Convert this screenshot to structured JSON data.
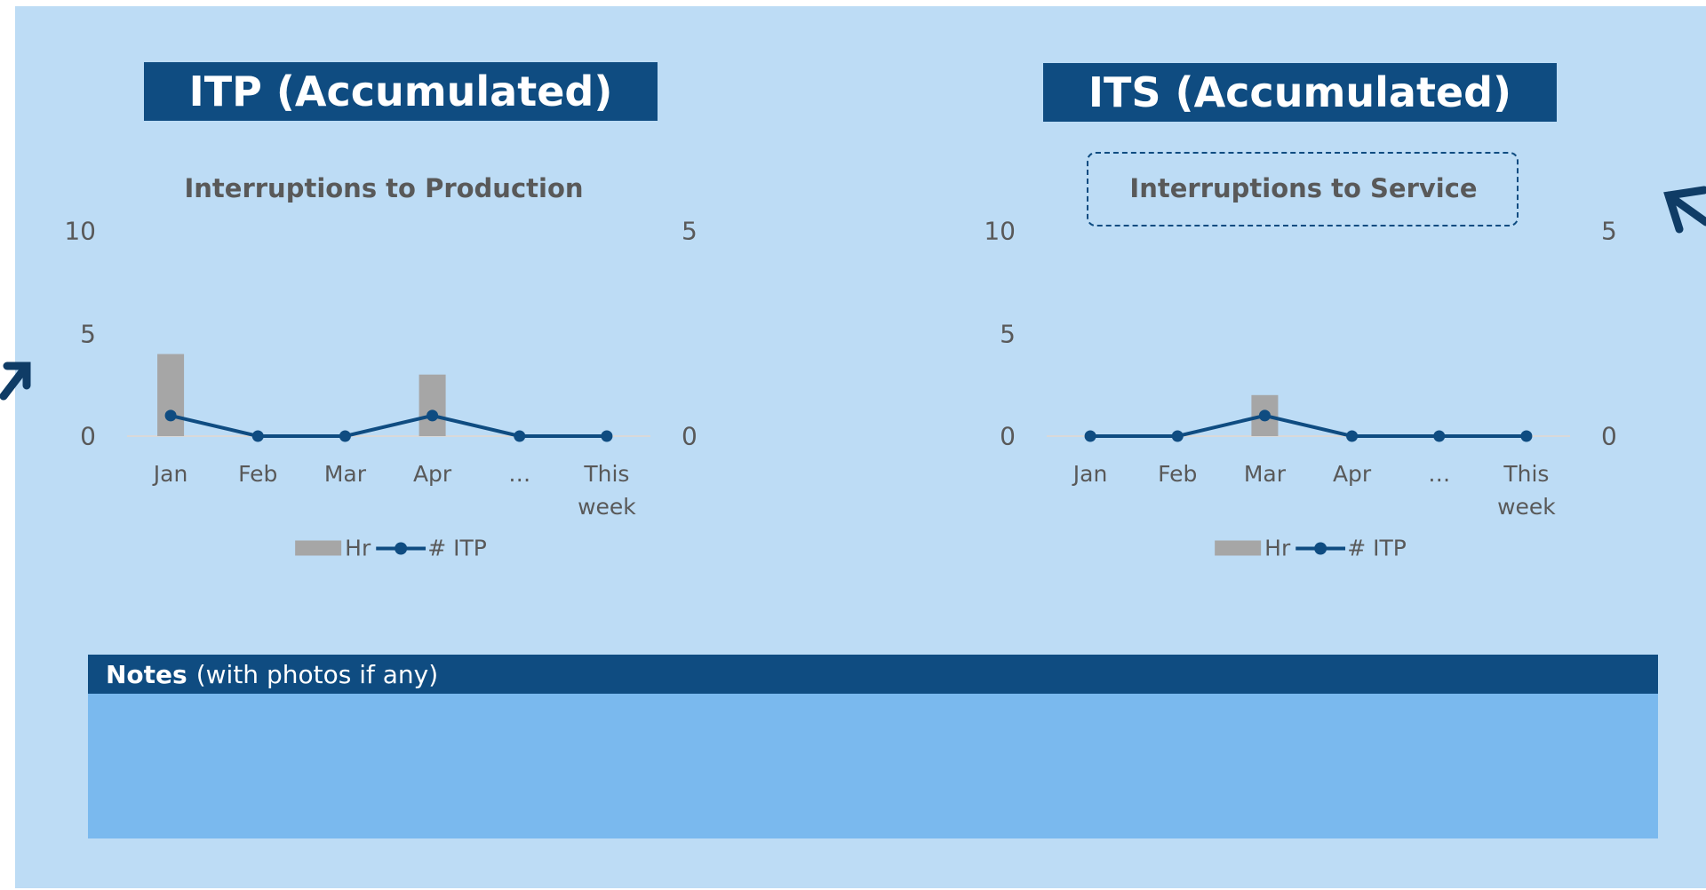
{
  "sections": [
    {
      "heading": "ITP (Accumulated)"
    },
    {
      "heading": "ITS (Accumulated)"
    }
  ],
  "chart_data": [
    {
      "type": "combo",
      "title": "Interruptions to Production",
      "categories": [
        "Jan",
        "Feb",
        "Mar",
        "Apr",
        "…",
        "This week"
      ],
      "series": [
        {
          "name": "Hr",
          "type": "bar",
          "color": "#a6a6a6",
          "values": [
            4,
            0,
            0,
            3,
            0,
            0
          ]
        },
        {
          "name": "# ITP",
          "type": "line",
          "color": "#0f4c81",
          "values": [
            1,
            0,
            0,
            1,
            0,
            0
          ]
        }
      ],
      "ylim": [
        0,
        10
      ],
      "yticks": [
        0,
        5,
        10
      ],
      "y2lim": [
        0,
        5
      ],
      "y2ticks": [
        0,
        5
      ],
      "grid": false,
      "legend": "bottom"
    },
    {
      "type": "combo",
      "title": "Interruptions to Service",
      "categories": [
        "Jan",
        "Feb",
        "Mar",
        "Apr",
        "…",
        "This week"
      ],
      "series": [
        {
          "name": "Hr",
          "type": "bar",
          "color": "#a6a6a6",
          "values": [
            0,
            0,
            2,
            0,
            0,
            0
          ]
        },
        {
          "name": "# ITP",
          "type": "line",
          "color": "#0f4c81",
          "values": [
            0,
            0,
            1,
            0,
            0,
            0
          ]
        }
      ],
      "ylim": [
        0,
        10
      ],
      "yticks": [
        0,
        5,
        10
      ],
      "y2lim": [
        0,
        5
      ],
      "y2ticks": [
        0,
        5
      ],
      "grid": false,
      "legend": "bottom"
    }
  ],
  "notes": {
    "label": "Notes",
    "hint": "(with photos if any)"
  }
}
